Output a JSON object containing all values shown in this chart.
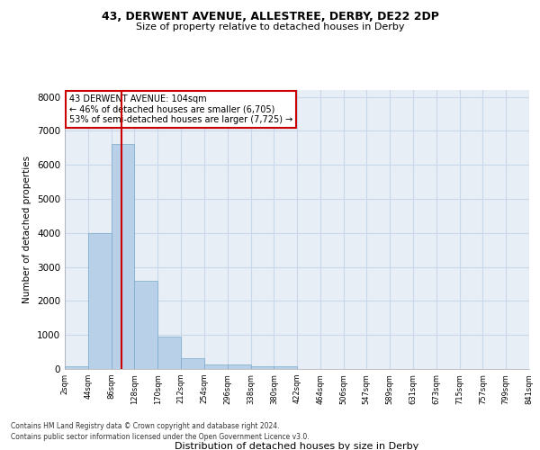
{
  "title1": "43, DERWENT AVENUE, ALLESTREE, DERBY, DE22 2DP",
  "title2": "Size of property relative to detached houses in Derby",
  "xlabel": "Distribution of detached houses by size in Derby",
  "ylabel": "Number of detached properties",
  "footnote1": "Contains HM Land Registry data © Crown copyright and database right 2024.",
  "footnote2": "Contains public sector information licensed under the Open Government Licence v3.0.",
  "bar_edges": [
    2,
    44,
    86,
    128,
    170,
    212,
    254,
    296,
    338,
    380,
    422,
    464,
    506,
    547,
    589,
    631,
    673,
    715,
    757,
    799,
    841
  ],
  "bar_heights": [
    80,
    4000,
    6600,
    2600,
    950,
    320,
    140,
    130,
    80,
    70,
    0,
    0,
    0,
    0,
    0,
    0,
    0,
    0,
    0,
    0
  ],
  "bar_color": "#b8d0e8",
  "bar_edge_color": "#7aaac8",
  "grid_color": "#c8d8e8",
  "bg_color": "#e8eef6",
  "vline_x": 104,
  "vline_color": "#cc0000",
  "ylim": [
    0,
    8200
  ],
  "yticks": [
    0,
    1000,
    2000,
    3000,
    4000,
    5000,
    6000,
    7000,
    8000
  ],
  "annotation_title": "43 DERWENT AVENUE: 104sqm",
  "annotation_line1": "← 46% of detached houses are smaller (6,705)",
  "annotation_line2": "53% of semi-detached houses are larger (7,725) →",
  "annotation_box_color": "#cc0000",
  "annotation_fill": "#ffffff"
}
